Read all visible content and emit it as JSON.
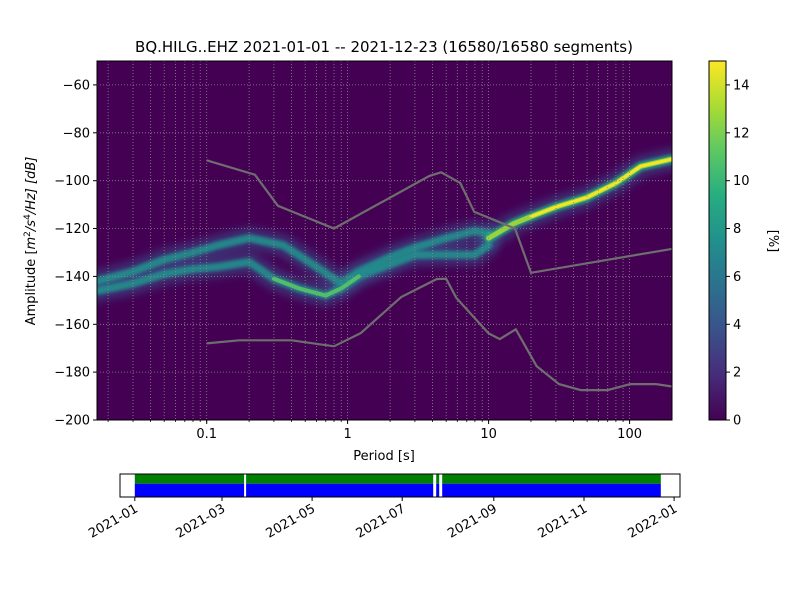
{
  "title": "BQ.HILG..EHZ   2021-01-01 -- 2021-12-23  (16580/16580 segments)",
  "colors": {
    "noise_model": "#6e6e6e",
    "grid": "#8a8a8a",
    "coverage_top": "#008000",
    "coverage_bottom": "#0000ff",
    "viridis": [
      "#440154",
      "#472c7a",
      "#3b518b",
      "#2c718e",
      "#21908d",
      "#27ad81",
      "#5cc863",
      "#aadc32",
      "#fde725"
    ]
  },
  "chart_data": [
    {
      "type": "heatmap",
      "title": "BQ.HILG..EHZ   2021-01-01 -- 2021-12-23  (16580/16580 segments)",
      "xlabel": "Period [s]",
      "ylabel_main": "Amplitude [",
      "ylabel_m": "m",
      "ylabel_2": "2",
      "ylabel_s": "/s",
      "ylabel_4": "4",
      "ylabel_tail": "/Hz] [dB]",
      "x_scale": "log",
      "xlim": [
        0.01667,
        200
      ],
      "ylim": [
        -200,
        -50
      ],
      "x_ticks": [
        {
          "value": 0.1,
          "label": "0.1"
        },
        {
          "value": 1,
          "label": "1"
        },
        {
          "value": 10,
          "label": "10"
        },
        {
          "value": 100,
          "label": "100"
        }
      ],
      "y_ticks": [
        {
          "value": -200,
          "label": "−200"
        },
        {
          "value": -180,
          "label": "−180"
        },
        {
          "value": -160,
          "label": "−160"
        },
        {
          "value": -140,
          "label": "−140"
        },
        {
          "value": -120,
          "label": "−120"
        },
        {
          "value": -100,
          "label": "−100"
        },
        {
          "value": -80,
          "label": "−80"
        },
        {
          "value": -60,
          "label": "−60"
        }
      ],
      "grid": true,
      "colorbar": {
        "label": "[%]",
        "range": [
          0,
          15
        ],
        "ticks": [
          {
            "value": 0,
            "label": "0"
          },
          {
            "value": 2,
            "label": "2"
          },
          {
            "value": 4,
            "label": "4"
          },
          {
            "value": 6,
            "label": "6"
          },
          {
            "value": 8,
            "label": "8"
          },
          {
            "value": 10,
            "label": "10"
          },
          {
            "value": 12,
            "label": "12"
          },
          {
            "value": 14,
            "label": "14"
          }
        ]
      },
      "density_ridges": [
        {
          "band": "upper",
          "points": [
            [
              0.01667,
              -142
            ],
            [
              0.03,
              -138
            ],
            [
              0.05,
              -133
            ],
            [
              0.08,
              -130
            ],
            [
              0.12,
              -127
            ],
            [
              0.2,
              -124
            ],
            [
              0.35,
              -127
            ],
            [
              0.6,
              -136
            ],
            [
              0.9,
              -143
            ],
            [
              1.2,
              -138
            ],
            [
              2,
              -132
            ],
            [
              3,
              -128
            ],
            [
              5,
              -124
            ],
            [
              8,
              -121
            ],
            [
              10,
              -122
            ]
          ]
        },
        {
          "band": "lower",
          "points": [
            [
              0.01667,
              -146
            ],
            [
              0.03,
              -143
            ],
            [
              0.05,
              -139
            ],
            [
              0.08,
              -137
            ],
            [
              0.12,
              -136
            ],
            [
              0.2,
              -134
            ],
            [
              0.3,
              -141
            ],
            [
              0.45,
              -145
            ],
            [
              0.7,
              -148
            ],
            [
              0.9,
              -145
            ],
            [
              1.2,
              -140
            ],
            [
              2,
              -135
            ],
            [
              3,
              -131
            ],
            [
              5,
              -131
            ],
            [
              8,
              -131
            ],
            [
              10,
              -127
            ]
          ]
        },
        {
          "band": "microseism",
          "points": [
            [
              10,
              -124
            ],
            [
              15,
              -118
            ],
            [
              20,
              -115
            ],
            [
              30,
              -111
            ],
            [
              50,
              -107
            ],
            [
              80,
              -101
            ],
            [
              120,
              -94
            ],
            [
              200,
              -91
            ]
          ]
        }
      ],
      "noise_model_high": [
        [
          0.1,
          -91.5
        ],
        [
          0.22,
          -97.5
        ],
        [
          0.32,
          -110.5
        ],
        [
          0.8,
          -120
        ],
        [
          3.8,
          -98
        ],
        [
          4.6,
          -96.5
        ],
        [
          6.3,
          -101
        ],
        [
          7.9,
          -113
        ],
        [
          15.4,
          -120
        ],
        [
          20,
          -138.5
        ],
        [
          200,
          -128.5
        ]
      ],
      "noise_model_low": [
        [
          0.1,
          -168
        ],
        [
          0.17,
          -166.7
        ],
        [
          0.4,
          -166.7
        ],
        [
          0.8,
          -169.2
        ],
        [
          1.24,
          -163.7
        ],
        [
          2.4,
          -148.6
        ],
        [
          4.3,
          -141.1
        ],
        [
          5,
          -141
        ],
        [
          5.9,
          -149
        ],
        [
          10,
          -163.8
        ],
        [
          12,
          -166.2
        ],
        [
          15.6,
          -162.1
        ],
        [
          21.9,
          -177.5
        ],
        [
          31.6,
          -185
        ],
        [
          45,
          -187.5
        ],
        [
          70,
          -187.5
        ],
        [
          101,
          -185
        ],
        [
          154,
          -185
        ],
        [
          200,
          -186
        ]
      ]
    },
    {
      "type": "bar",
      "title": "",
      "x_ticks": [
        "2021-01",
        "2021-03",
        "2021-05",
        "2021-07",
        "2021-09",
        "2021-11",
        "2022-01"
      ],
      "xlim": [
        "2020-12-22",
        "2022-01-05"
      ],
      "data_range": [
        "2021-01-01",
        "2021-12-23"
      ],
      "gaps": [
        [
          "2021-03-16",
          "2021-03-17"
        ],
        [
          "2021-07-22",
          "2021-07-24"
        ],
        [
          "2021-07-26",
          "2021-07-28"
        ]
      ]
    }
  ]
}
